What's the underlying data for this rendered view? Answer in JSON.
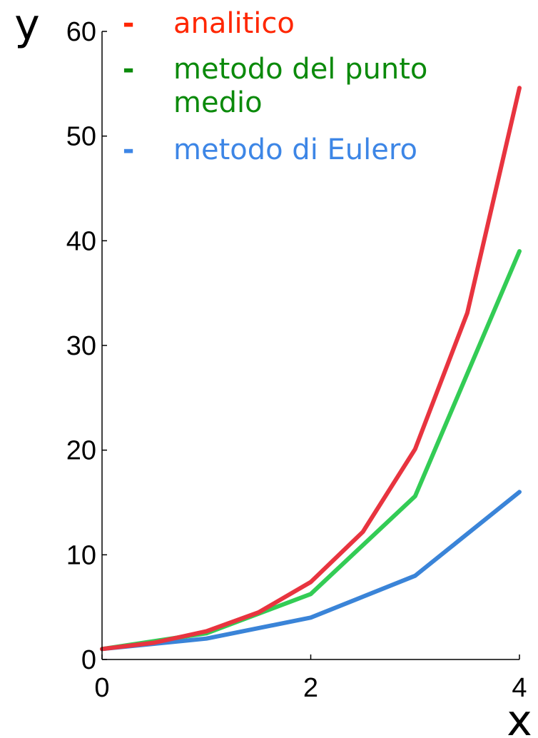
{
  "chart_data": {
    "type": "line",
    "xlabel": "x",
    "ylabel": "y",
    "xlim": [
      0,
      4
    ],
    "ylim": [
      0,
      60
    ],
    "xticks": [
      "0",
      "2",
      "4"
    ],
    "yticks": [
      "0",
      "10",
      "20",
      "30",
      "40",
      "50",
      "60"
    ],
    "grid": false,
    "legend_position": "top-left",
    "series": [
      {
        "name": "analitico",
        "dash": "-",
        "color": "#e8343f",
        "text_color": "#ff2600",
        "x": [
          0,
          0.5,
          1,
          1.5,
          2,
          2.5,
          3,
          3.5,
          4
        ],
        "y": [
          1,
          1.6,
          2.7,
          4.5,
          7.4,
          12.2,
          20.1,
          33.1,
          54.6
        ]
      },
      {
        "name": "metodo del punto\nmedio",
        "dash": "-",
        "color": "#33cc55",
        "text_color": "#0b8a0b",
        "x": [
          0,
          1,
          2,
          3,
          4
        ],
        "y": [
          1,
          2.5,
          6.25,
          15.6,
          39
        ]
      },
      {
        "name": "metodo di Eulero",
        "dash": "-",
        "color": "#3a84d8",
        "text_color": "#3d86e6",
        "x": [
          0,
          1,
          2,
          3,
          4
        ],
        "y": [
          1,
          2,
          4,
          8,
          16
        ]
      }
    ]
  }
}
